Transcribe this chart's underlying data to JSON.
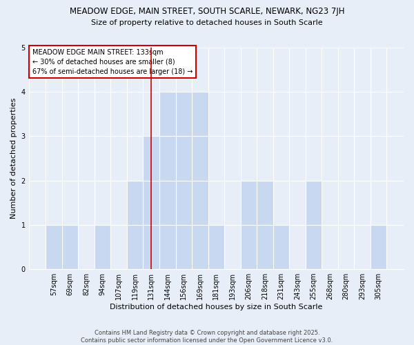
{
  "title1": "MEADOW EDGE, MAIN STREET, SOUTH SCARLE, NEWARK, NG23 7JH",
  "title2": "Size of property relative to detached houses in South Scarle",
  "categories": [
    "57sqm",
    "69sqm",
    "82sqm",
    "94sqm",
    "107sqm",
    "119sqm",
    "131sqm",
    "144sqm",
    "156sqm",
    "169sqm",
    "181sqm",
    "193sqm",
    "206sqm",
    "218sqm",
    "231sqm",
    "243sqm",
    "255sqm",
    "268sqm",
    "280sqm",
    "293sqm",
    "305sqm"
  ],
  "values": [
    1,
    1,
    0,
    1,
    0,
    2,
    3,
    4,
    4,
    4,
    1,
    0,
    2,
    2,
    1,
    0,
    2,
    0,
    0,
    0,
    1
  ],
  "bar_color": "#c8d8f0",
  "bar_edge_color": "#7aaadd",
  "highlight_index": 6,
  "highlight_line_color": "#cc0000",
  "ylabel": "Number of detached properties",
  "xlabel": "Distribution of detached houses by size in South Scarle",
  "ylim": [
    0,
    5
  ],
  "yticks": [
    0,
    1,
    2,
    3,
    4,
    5
  ],
  "annotation_title": "MEADOW EDGE MAIN STREET: 133sqm",
  "annotation_line1": "← 30% of detached houses are smaller (8)",
  "annotation_line2": "67% of semi-detached houses are larger (18) →",
  "annotation_box_color": "#ffffff",
  "annotation_box_edge": "#cc0000",
  "footnote1": "Contains HM Land Registry data © Crown copyright and database right 2025.",
  "footnote2": "Contains public sector information licensed under the Open Government Licence v3.0.",
  "bg_color": "#e8eef8",
  "plot_bg_color": "#e8eef8"
}
